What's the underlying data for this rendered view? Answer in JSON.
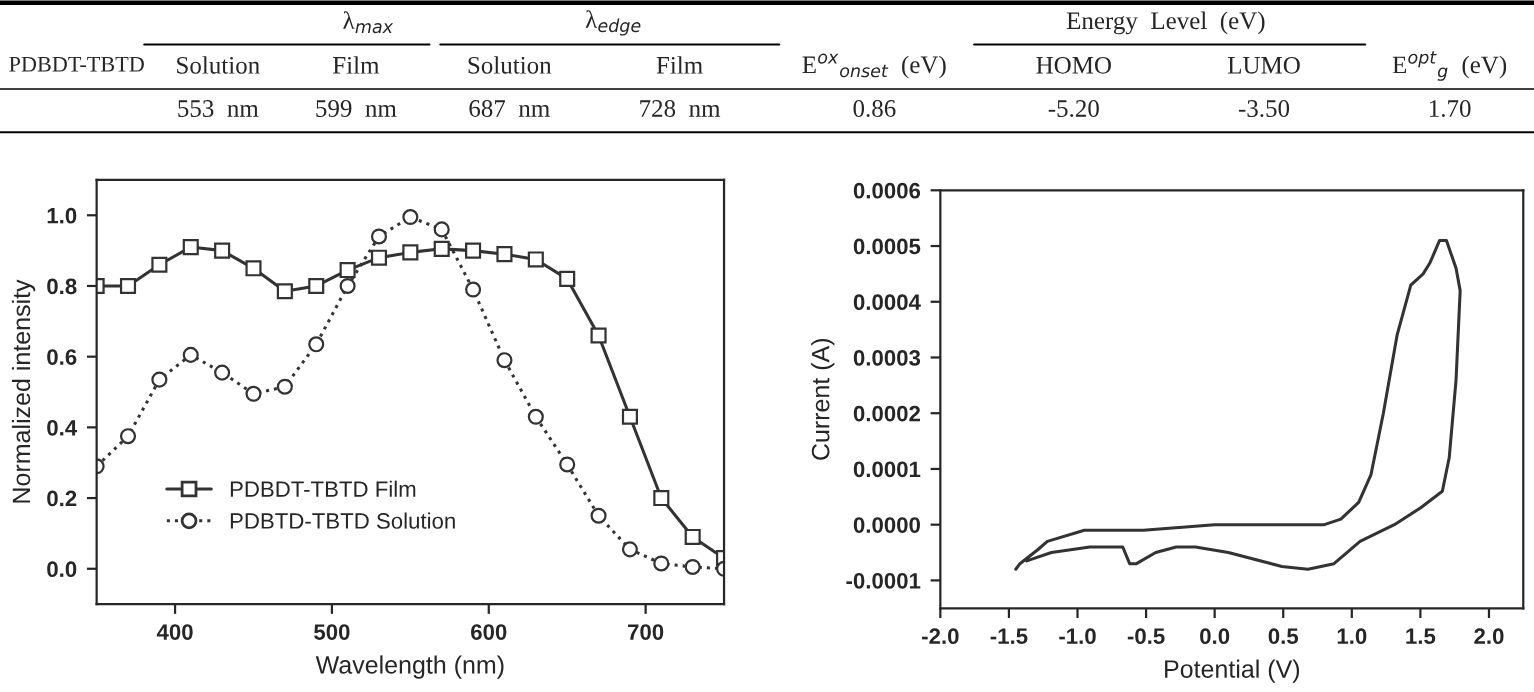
{
  "chart_data": [
    {
      "type": "other",
      "annotations": [
        "λ$_{max}$",
        "λ$_{edge}$",
        "E$^{ox}$$_{onset}$  (eV)",
        "Energy  Level  (eV)",
        "E$^{opt}$$_{g}$  (eV)",
        "PDBDT-TBTD",
        "Solution",
        "Film",
        "Solution",
        "Film",
        "HOMO",
        "LUMO",
        "553  nm",
        "599  nm",
        "687  nm",
        "728  nm",
        "0.86",
        "-5.20",
        "-3.50",
        "1.70"
      ]
    },
    {
      "type": "line",
      "xlabel": "Wavelength (nm)",
      "ylabel": "Normalized intensity",
      "xlim": [
        350,
        750
      ],
      "ylim": [
        -0.1,
        1.1
      ],
      "xticks": [
        400,
        500,
        600,
        700
      ],
      "yticks": [
        {
          "value": 0.0,
          "label": "0.0"
        },
        0.2,
        0.4,
        0.6,
        0.8,
        {
          "value": 1.0,
          "label": "1.0"
        }
      ],
      "legend": "bottom left",
      "grid": false,
      "x": [
        350,
        370,
        390,
        410,
        430,
        450,
        470,
        490,
        510,
        530,
        550,
        570,
        590,
        610,
        630,
        650,
        670,
        690,
        710,
        730,
        750
      ],
      "series": [
        {
          "name": "PDBDT-TBTD Film",
          "color": "#333333",
          "marker": "square",
          "line_style": "solid",
          "values": [
            0.8,
            0.8,
            0.86,
            0.91,
            0.9,
            0.85,
            0.785,
            0.8,
            0.845,
            0.88,
            0.895,
            0.905,
            0.9,
            0.89,
            0.875,
            0.82,
            0.66,
            0.43,
            0.2,
            0.09,
            0.03
          ]
        },
        {
          "name": "PDBTD-TBTD Solution",
          "color": "#333333",
          "marker": "circle",
          "line_style": "dotted",
          "values": [
            0.29,
            0.375,
            0.535,
            0.605,
            0.555,
            0.495,
            0.515,
            0.635,
            0.8,
            0.94,
            0.995,
            0.96,
            0.79,
            0.59,
            0.43,
            0.295,
            0.15,
            0.055,
            0.015,
            0.005,
            0.0
          ]
        }
      ]
    },
    {
      "type": "line",
      "xlabel": "Potential (V)",
      "ylabel": "Current (A)",
      "xlim": [
        -2.0,
        2.25
      ],
      "ylim": [
        -0.00015,
        0.0006
      ],
      "xticks": [
        {
          "value": -2.0,
          "label": "-2.0"
        },
        -1.5,
        {
          "value": -1.0,
          "label": "-1.0"
        },
        -0.5,
        {
          "value": 0.0,
          "label": "0.0"
        },
        0.5,
        {
          "value": 1.0,
          "label": "1.0"
        },
        1.5,
        {
          "value": 2.0,
          "label": "2.0"
        }
      ],
      "yticks": [
        {
          "value": -0.0001,
          "label": "-0.0001"
        },
        {
          "value": 0.0,
          "label": "0.0000"
        },
        {
          "value": 0.0001,
          "label": "0.0001"
        },
        {
          "value": 0.0002,
          "label": "0.0002"
        },
        {
          "value": 0.0003,
          "label": "0.0003"
        },
        {
          "value": 0.0004,
          "label": "0.0004"
        },
        {
          "value": 0.0005,
          "label": "0.0005"
        },
        {
          "value": 0.0006,
          "label": "0.0006"
        }
      ],
      "grid": false,
      "series": [
        {
          "color": "#333333",
          "x": [
            -1.45,
            -1.42,
            -1.29,
            -1.22,
            -0.95,
            -0.52,
            0.0,
            0.8,
            0.92,
            1.05,
            1.14,
            1.23,
            1.33,
            1.43,
            1.52,
            1.57,
            1.64,
            1.69,
            1.76,
            1.79,
            1.76,
            1.71,
            1.66,
            1.5,
            1.31,
            1.06,
            0.87,
            0.68,
            0.49,
            0.1,
            -0.14,
            -0.28,
            -0.43,
            -0.57,
            -0.62,
            -0.67,
            -0.77,
            -0.91,
            -1.19,
            -1.37
          ],
          "values": [
            -8e-05,
            -7e-05,
            -4.5e-05,
            -3e-05,
            -1e-05,
            -1e-05,
            0.0,
            0.0,
            1e-05,
            4e-05,
            9e-05,
            0.0002,
            0.00034,
            0.00043,
            0.00045,
            0.00047,
            0.00051,
            0.00051,
            0.00046,
            0.00042,
            0.00026,
            0.00012,
            6e-05,
            3e-05,
            0.0,
            -3e-05,
            -7e-05,
            -8e-05,
            -7.5e-05,
            -5e-05,
            -4e-05,
            -4e-05,
            -5e-05,
            -7e-05,
            -7e-05,
            -4e-05,
            -4e-05,
            -4e-05,
            -5e-05,
            -6.5e-05
          ]
        }
      ]
    }
  ]
}
